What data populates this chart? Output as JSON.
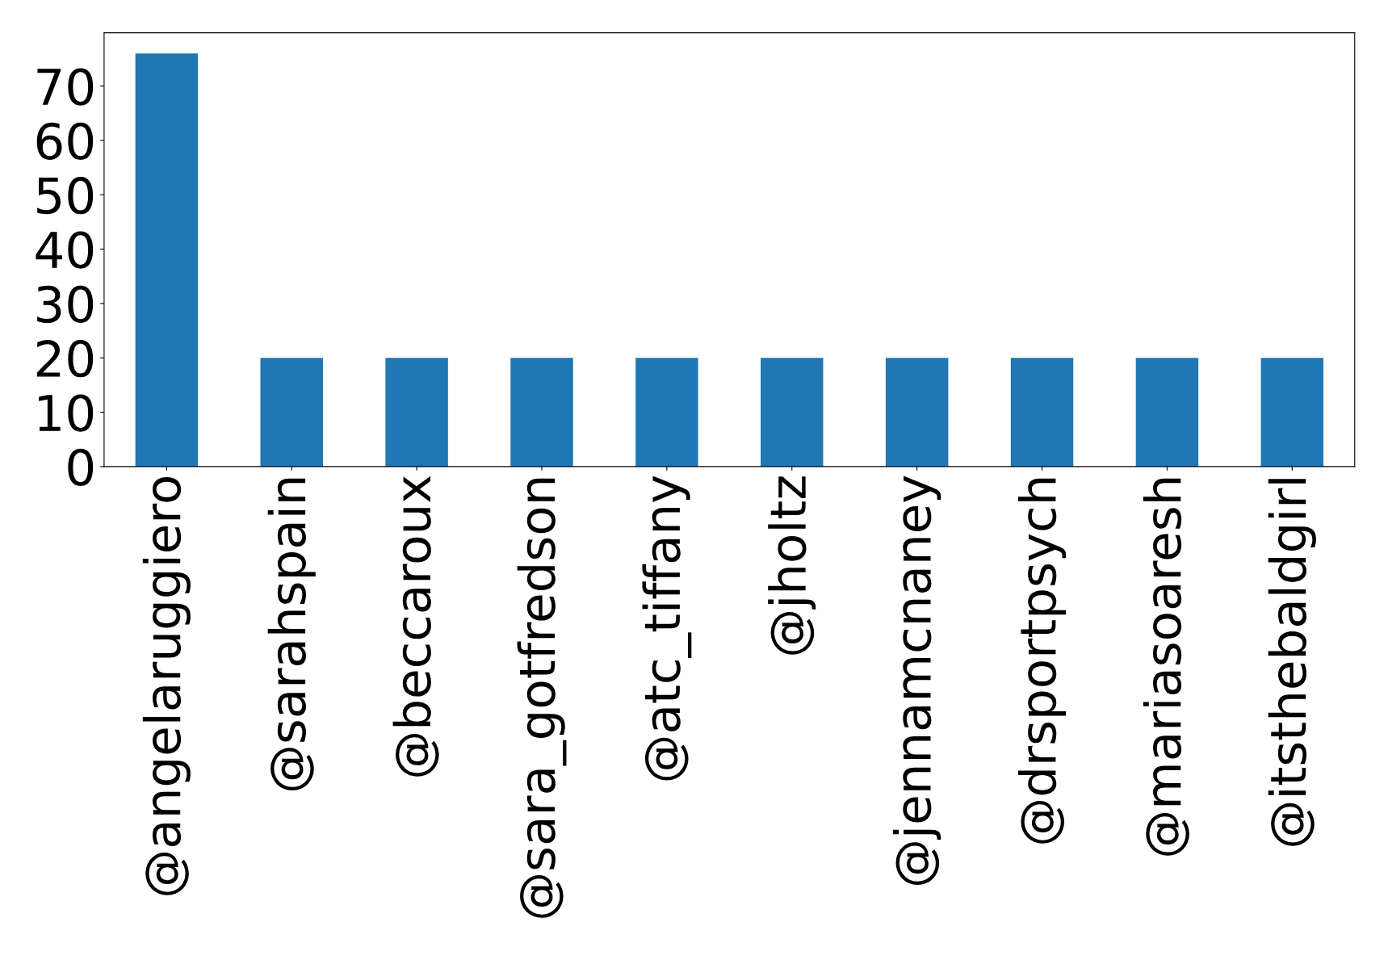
{
  "chart_data": {
    "type": "bar",
    "categories": [
      "@angelaruggiero",
      "@sarahspain",
      "@beccaroux",
      "@sara_gotfredson",
      "@atc_tiffany",
      "@jholtz",
      "@jennamcnaney",
      "@drsportpsych",
      "@mariasoaresh",
      "@itsthebaldgirl"
    ],
    "values": [
      76,
      20,
      20,
      20,
      20,
      20,
      20,
      20,
      20,
      20
    ],
    "color": "#1f77b4",
    "ylim": [
      0,
      79.8
    ],
    "yticks": [
      0,
      10,
      20,
      30,
      40,
      50,
      60,
      70
    ],
    "grid": false
  }
}
